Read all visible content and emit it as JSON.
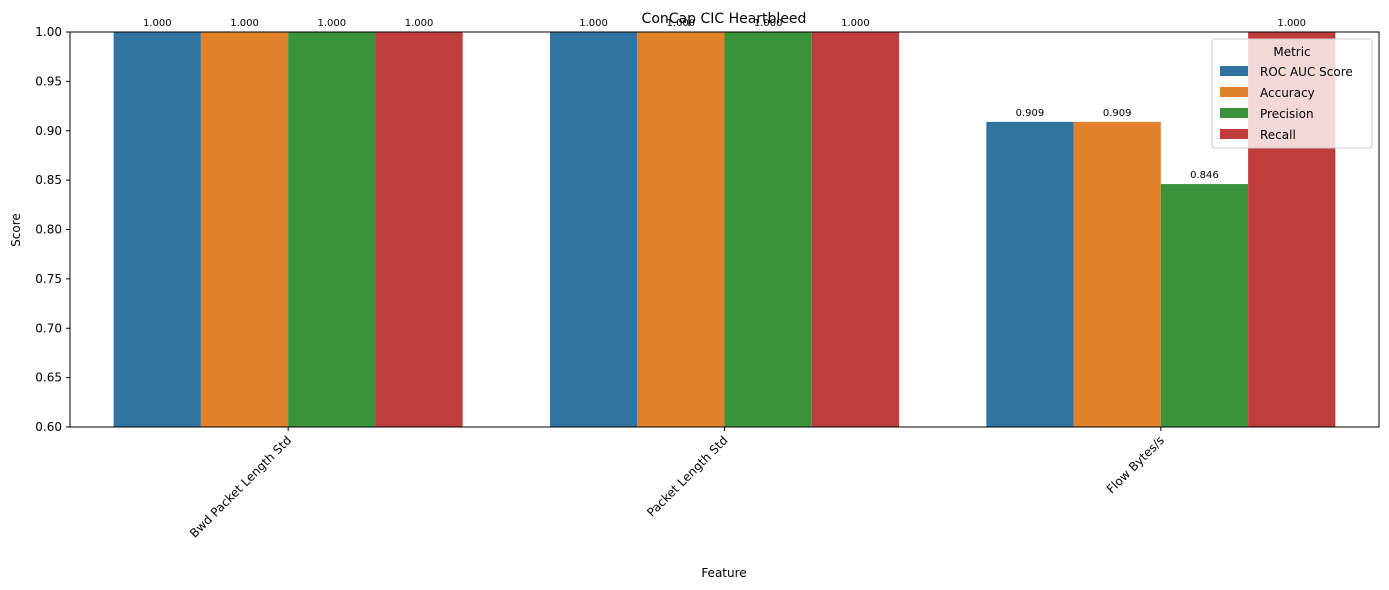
{
  "chart_data": {
    "type": "bar",
    "title": "ConCap CIC Heartbleed",
    "xlabel": "Feature",
    "ylabel": "Score",
    "ylim": [
      0.6,
      1.0
    ],
    "yticks": [
      "0.60",
      "0.65",
      "0.70",
      "0.75",
      "0.80",
      "0.85",
      "0.90",
      "0.95",
      "1.00"
    ],
    "grid": false,
    "categories": [
      "Bwd Packet Length Std",
      "Packet Length Std",
      "Flow Bytes/s"
    ],
    "series": [
      {
        "name": "ROC AUC Score",
        "color": "#3274a1",
        "values": [
          1.0,
          1.0,
          0.909
        ],
        "labels": [
          "1.000",
          "1.000",
          "0.909"
        ]
      },
      {
        "name": "Accuracy",
        "color": "#e1812c",
        "values": [
          1.0,
          1.0,
          0.909
        ],
        "labels": [
          "1.000",
          "1.000",
          "0.909"
        ]
      },
      {
        "name": "Precision",
        "color": "#3a923a",
        "values": [
          1.0,
          1.0,
          0.846
        ],
        "labels": [
          "1.000",
          "1.000",
          "0.846"
        ]
      },
      {
        "name": "Recall",
        "color": "#c03d3e",
        "values": [
          1.0,
          1.0,
          1.0
        ],
        "labels": [
          "1.000",
          "1.000",
          "1.000"
        ]
      }
    ],
    "legend": {
      "title": "Metric",
      "placement": "top-right"
    }
  }
}
